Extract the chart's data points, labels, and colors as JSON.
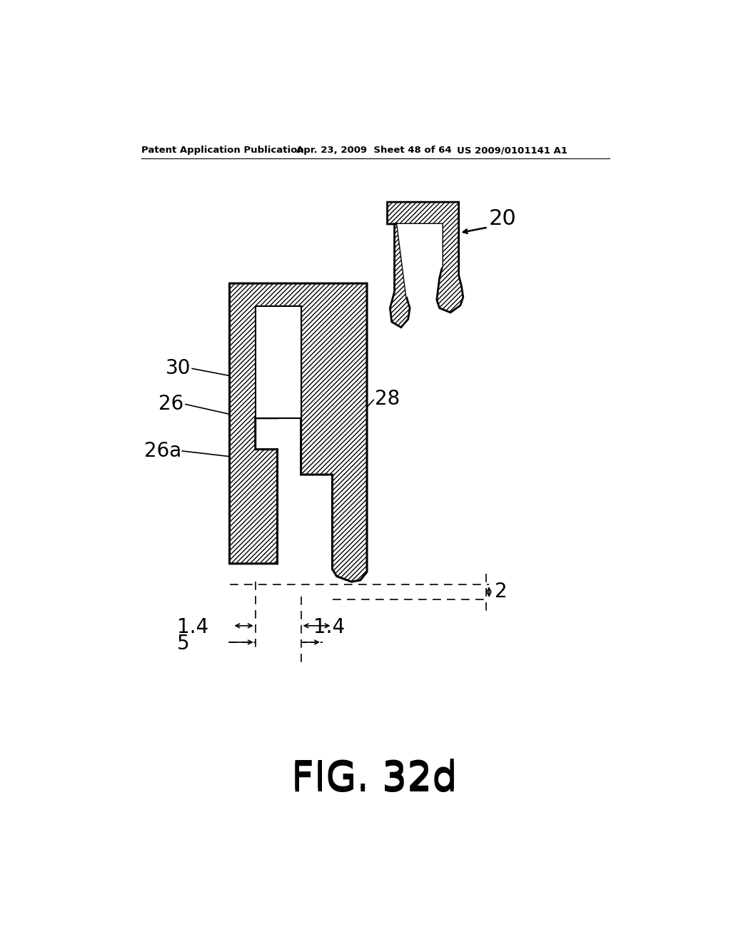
{
  "header_left": "Patent Application Publication",
  "header_center": "Apr. 23, 2009  Sheet 48 of 64",
  "header_right": "US 2009/0101141 A1",
  "fig_label": "FIG. 32d",
  "label_20": "20",
  "label_28": "28",
  "label_30": "30",
  "label_26": "26",
  "label_26a": "26a",
  "label_2": "2",
  "label_1_4_left": "1.4",
  "label_1_4_right": "1.4",
  "label_5": "5",
  "bg_color": "#ffffff"
}
